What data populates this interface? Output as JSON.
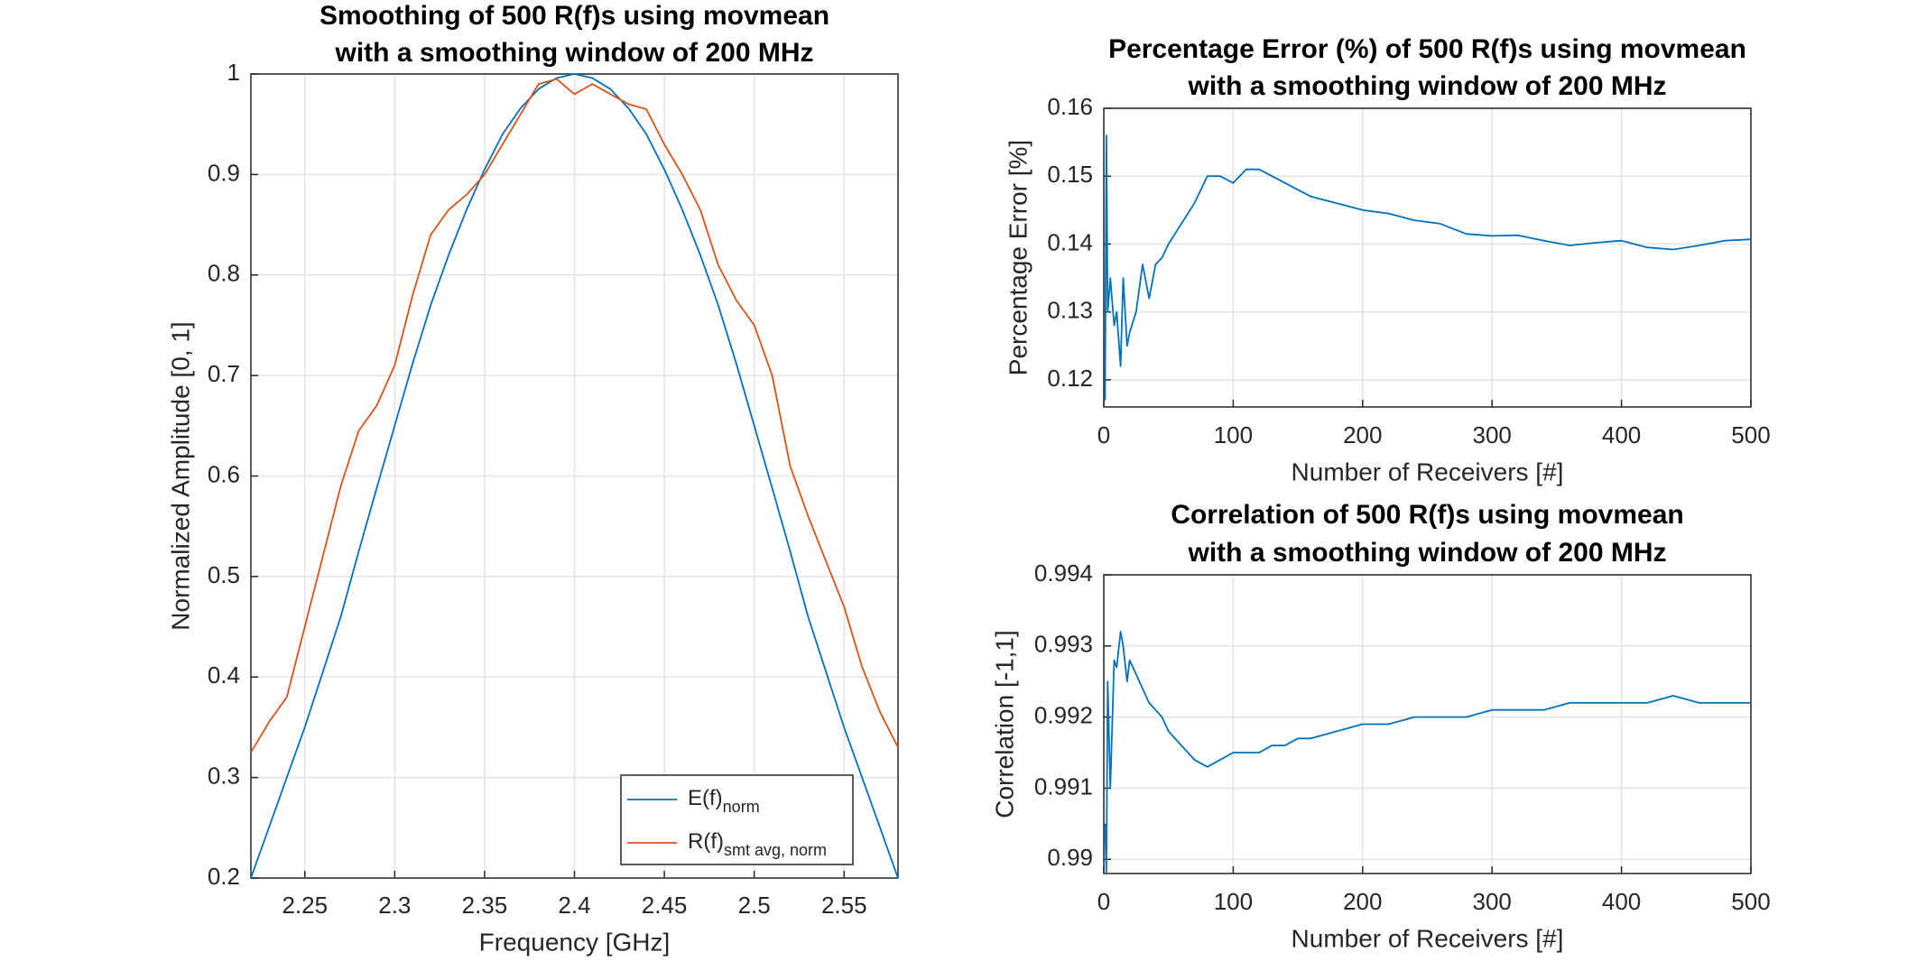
{
  "chart_data": [
    {
      "type": "line",
      "title": [
        "Smoothing of 500 R(f)s using movmean",
        "with a smoothing window of 200 MHz"
      ],
      "xlabel": "Frequency [GHz]",
      "ylabel": "Normalized Amplitude [0, 1]",
      "x": [
        2.22,
        2.23,
        2.24,
        2.25,
        2.26,
        2.27,
        2.28,
        2.29,
        2.3,
        2.31,
        2.32,
        2.33,
        2.34,
        2.35,
        2.36,
        2.37,
        2.38,
        2.39,
        2.4,
        2.41,
        2.42,
        2.43,
        2.44,
        2.45,
        2.46,
        2.47,
        2.48,
        2.49,
        2.5,
        2.51,
        2.52,
        2.53,
        2.54,
        2.55,
        2.56,
        2.57,
        2.58
      ],
      "series": [
        {
          "name": "E(f)",
          "name_subscript": "norm",
          "color": "#0072bd",
          "values": [
            0.2,
            0.25,
            0.3,
            0.35,
            0.405,
            0.46,
            0.525,
            0.588,
            0.65,
            0.712,
            0.77,
            0.82,
            0.865,
            0.905,
            0.94,
            0.966,
            0.985,
            0.996,
            1,
            0.996,
            0.985,
            0.966,
            0.94,
            0.905,
            0.865,
            0.82,
            0.77,
            0.712,
            0.65,
            0.588,
            0.525,
            0.46,
            0.405,
            0.35,
            0.3,
            0.25,
            0.2
          ]
        },
        {
          "name": "R(f)",
          "name_subscript": "smt avg, norm",
          "color": "#d95319",
          "values": [
            0.325,
            0.355,
            0.38,
            0.45,
            0.52,
            0.59,
            0.645,
            0.67,
            0.71,
            0.78,
            0.84,
            0.865,
            0.88,
            0.9,
            0.93,
            0.96,
            0.99,
            0.995,
            0.98,
            0.99,
            0.98,
            0.97,
            0.965,
            0.93,
            0.9,
            0.865,
            0.81,
            0.775,
            0.75,
            0.7,
            0.61,
            0.56,
            0.515,
            0.47,
            0.41,
            0.365,
            0.33
          ]
        }
      ],
      "xlim": [
        2.22,
        2.58
      ],
      "xticks": [
        2.25,
        2.3,
        2.35,
        2.4,
        2.45,
        2.5,
        2.55
      ],
      "ylim": [
        0.2,
        1
      ],
      "yticks": [
        0.2,
        0.3,
        0.4,
        0.5,
        0.6,
        0.7,
        0.8,
        0.9,
        1
      ],
      "grid": true,
      "legend": "lower right"
    },
    {
      "type": "line",
      "title": [
        "Percentage Error (%) of 500 R(f)s using movmean",
        "with a smoothing window of 200 MHz"
      ],
      "xlabel": "Number of Receivers [#]",
      "ylabel": "Percentage Error [%]",
      "x": [
        1,
        2,
        3,
        5,
        8,
        10,
        13,
        15,
        18,
        20,
        25,
        30,
        35,
        40,
        45,
        50,
        60,
        70,
        80,
        90,
        100,
        110,
        120,
        130,
        140,
        150,
        160,
        180,
        200,
        220,
        240,
        260,
        280,
        300,
        320,
        340,
        360,
        380,
        400,
        420,
        440,
        460,
        480,
        500
      ],
      "series": [
        {
          "name": "Percentage Error",
          "color": "#0072bd",
          "values": [
            0.117,
            0.156,
            0.13,
            0.135,
            0.128,
            0.13,
            0.122,
            0.135,
            0.125,
            0.127,
            0.13,
            0.137,
            0.132,
            0.137,
            0.138,
            0.14,
            0.143,
            0.146,
            0.15,
            0.15,
            0.149,
            0.151,
            0.151,
            0.15,
            0.149,
            0.148,
            0.147,
            0.146,
            0.145,
            0.1445,
            0.1435,
            0.143,
            0.1415,
            0.1412,
            0.1413,
            0.1405,
            0.1398,
            0.1402,
            0.1405,
            0.1395,
            0.1392,
            0.1398,
            0.1405,
            0.1407
          ]
        }
      ],
      "xlim": [
        0,
        500
      ],
      "xticks": [
        0,
        100,
        200,
        300,
        400,
        500
      ],
      "ylim": [
        0.116,
        0.16
      ],
      "yticks": [
        0.12,
        0.13,
        0.14,
        0.15,
        0.16
      ],
      "grid": true
    },
    {
      "type": "line",
      "title": [
        "Correlation of 500 R(f)s using movmean",
        "with a smoothing window of 200 MHz"
      ],
      "xlabel": "Number of Receivers [#]",
      "ylabel": "Correlation [-1,1]",
      "x": [
        1,
        2,
        3,
        5,
        8,
        10,
        13,
        15,
        18,
        20,
        25,
        30,
        35,
        40,
        45,
        50,
        60,
        70,
        80,
        90,
        100,
        110,
        120,
        130,
        140,
        150,
        160,
        180,
        200,
        220,
        240,
        260,
        280,
        300,
        320,
        340,
        360,
        380,
        400,
        420,
        440,
        460,
        480,
        500
      ],
      "series": [
        {
          "name": "Correlation",
          "color": "#0072bd",
          "values": [
            0.9905,
            0.9898,
            0.9925,
            0.991,
            0.9928,
            0.9927,
            0.9932,
            0.993,
            0.9925,
            0.9928,
            0.9926,
            0.9924,
            0.9922,
            0.9921,
            0.992,
            0.9918,
            0.9916,
            0.9914,
            0.9913,
            0.9914,
            0.9915,
            0.9915,
            0.9915,
            0.9916,
            0.9916,
            0.9917,
            0.9917,
            0.9918,
            0.9919,
            0.9919,
            0.992,
            0.992,
            0.992,
            0.9921,
            0.9921,
            0.9921,
            0.9922,
            0.9922,
            0.9922,
            0.9922,
            0.9923,
            0.9922,
            0.9922,
            0.9922
          ]
        }
      ],
      "xlim": [
        0,
        500
      ],
      "xticks": [
        0,
        100,
        200,
        300,
        400,
        500
      ],
      "ylim": [
        0.9898,
        0.994
      ],
      "yticks": [
        0.99,
        0.991,
        0.992,
        0.993,
        0.994
      ],
      "grid": true
    }
  ]
}
